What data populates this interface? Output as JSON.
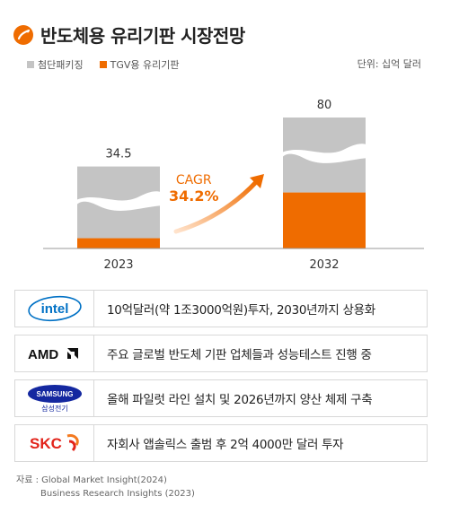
{
  "header": {
    "title": "반도체용 유리기판 시장전망",
    "unit": "단위: 십억 달러"
  },
  "legend": [
    {
      "label": "첨단패키징",
      "color": "#c4c4c4"
    },
    {
      "label": "TGV용 유리기판",
      "color": "#ef6c00"
    }
  ],
  "chart_data": {
    "type": "bar",
    "stacked": true,
    "categories": [
      "2023",
      "2032"
    ],
    "series": [
      {
        "name": "첨단패키징",
        "values": [
          30.1,
          56.0
        ],
        "color": "#c4c4c4"
      },
      {
        "name": "TGV용 유리기판",
        "values": [
          4.4,
          24.0
        ],
        "color": "#ef6c00"
      }
    ],
    "totals": [
      34.5,
      80
    ],
    "total_labels": [
      "34.5",
      "80"
    ],
    "axis_break": true,
    "annotation": {
      "label": "CAGR",
      "value": "34.2%"
    }
  },
  "companies": [
    {
      "logo": "intel",
      "text": "10억달러(약 1조3000억원)투자, 2030년까지 상용화"
    },
    {
      "logo": "AMD",
      "text": "주요 글로벌 반도체 기판 업체들과 성능테스트 진행 중"
    },
    {
      "logo": "SAMSUNG",
      "sublogo": "삼성전기",
      "text": "올해 파일럿 라인 설치 및 2026년까지 양산 체제 구축"
    },
    {
      "logo": "SKC",
      "text": "자회사 앱솔릭스 출범 후 2억 4000만 달러 투자"
    }
  ],
  "source": {
    "label": "자료 :",
    "line1": "Global Market Insight(2024)",
    "line2": "Business Research Insights (2023)"
  }
}
